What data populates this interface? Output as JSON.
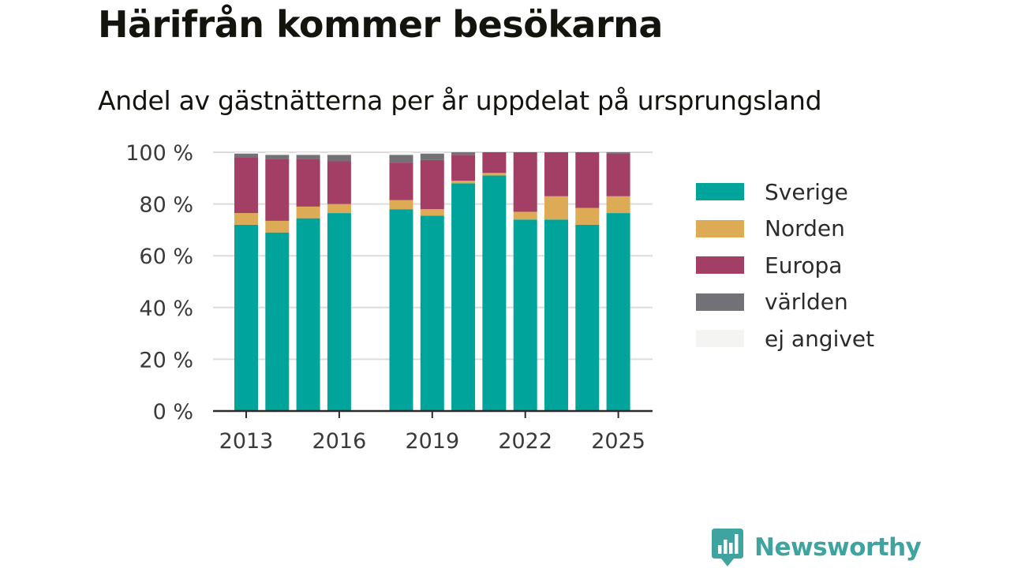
{
  "title": "Härifrån kommer besökarna",
  "subtitle": "Andel av gästnätterna per år uppdelat på ursprungsland",
  "brand": {
    "name": "Newsworthy",
    "logo_icon": "bar-chart-icon",
    "color": "#3fa3a0"
  },
  "chart_data": {
    "type": "bar",
    "stacked": true,
    "categories": [
      "2013",
      "2014",
      "2015",
      "2016",
      "2017",
      "2018",
      "2019",
      "2020",
      "2021",
      "2022",
      "2023",
      "2024",
      "2025"
    ],
    "x_tick_labels": [
      "2013",
      "2016",
      "2019",
      "2022",
      "2025"
    ],
    "y_tick_labels": [
      "0 %",
      "20 %",
      "40 %",
      "60 %",
      "80 %",
      "100 %"
    ],
    "ylim": [
      0,
      100
    ],
    "y_unit": "%",
    "grid": true,
    "legend_position": "right",
    "series": [
      {
        "name": "Sverige",
        "color": "#00a49a",
        "values": [
          72,
          69,
          74.5,
          76.5,
          null,
          78,
          75.5,
          88,
          91,
          74,
          74,
          72,
          76.5
        ]
      },
      {
        "name": "Norden",
        "color": "#ddaa55",
        "values": [
          4.5,
          4.5,
          4.5,
          3.5,
          null,
          3.5,
          2.5,
          1,
          1,
          3,
          9,
          6.5,
          6.5
        ]
      },
      {
        "name": "Europa",
        "color": "#a33e65",
        "values": [
          21.5,
          24,
          18.5,
          16.5,
          null,
          14.5,
          19,
          10,
          8,
          23,
          17,
          21.5,
          16.5
        ]
      },
      {
        "name": "världen",
        "color": "#727175",
        "values": [
          1.5,
          1.5,
          1.5,
          2.5,
          null,
          3,
          2.5,
          1,
          0,
          0,
          0,
          0,
          0.5
        ]
      },
      {
        "name": "ej angivet",
        "color": "#f4f4f2",
        "values": [
          0.5,
          1,
          1,
          1,
          null,
          1,
          0.5,
          0,
          0,
          0,
          0,
          0,
          0
        ]
      }
    ]
  }
}
